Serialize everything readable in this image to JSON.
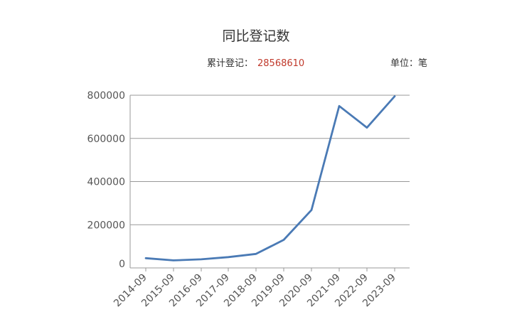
{
  "chart": {
    "title": "同比登记数",
    "total_label": "累计登记：",
    "total_value": "28568610",
    "unit_label": "单位：笔"
  },
  "chart_data": {
    "type": "line",
    "title": "同比登记数",
    "categories": [
      "2014-09",
      "2015-09",
      "2016-09",
      "2017-09",
      "2018-09",
      "2019-09",
      "2020-09",
      "2021-09",
      "2022-09",
      "2023-09"
    ],
    "series": [
      {
        "values": [
          45000,
          35000,
          40000,
          50000,
          65000,
          130000,
          268000,
          750000,
          650000,
          795000
        ]
      }
    ],
    "ylim": [
      0,
      800000
    ],
    "yticks": [
      0,
      200000,
      400000,
      600000,
      800000
    ],
    "grid": true,
    "colors": {
      "line": "#4a7ab5",
      "grid": "#999999"
    }
  }
}
